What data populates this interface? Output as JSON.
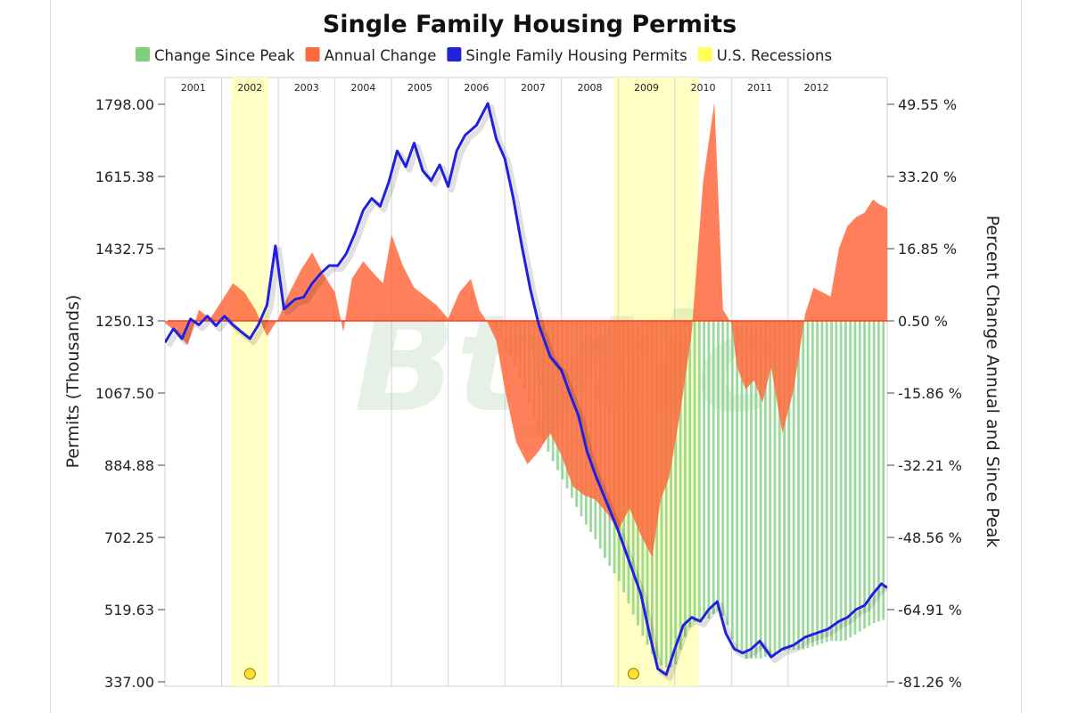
{
  "chart_data": {
    "type": "line+area+bar",
    "title": "Single Family Housing Permits",
    "ylabel_left": "Permits (Thousands)",
    "ylabel_right": "Percent Change Annual and Since Peak",
    "left_ticks": [
      "1798.00",
      "1615.38",
      "1432.75",
      "1250.13",
      "1067.50",
      "884.88",
      "702.25",
      "519.63",
      "337.00"
    ],
    "right_ticks": [
      "49.55 %",
      "33.20 %",
      "16.85 %",
      "0.50 %",
      "-15.86 %",
      "-32.21 %",
      "-48.56 %",
      "-64.91 %",
      "-81.26 %"
    ],
    "left_range": [
      337.0,
      1798.0
    ],
    "right_range": [
      -81.26,
      49.55
    ],
    "x_range": [
      2000.0,
      2012.75
    ],
    "year_labels": [
      "2001",
      "2002",
      "2003",
      "2004",
      "2005",
      "2006",
      "2007",
      "2008",
      "2009",
      "2010",
      "2011",
      "2012"
    ],
    "legend": [
      {
        "label": "Change Since Peak",
        "color": "#7fcf7f"
      },
      {
        "label": "Annual Change",
        "color": "#ff6a3d"
      },
      {
        "label": "Single Family Housing Permits",
        "color": "#2222dd"
      },
      {
        "label": "U.S. Recessions",
        "color": "#ffff55"
      }
    ],
    "recessions": [
      [
        2001.17,
        2001.83
      ],
      [
        2007.92,
        2009.42
      ]
    ],
    "grid": true,
    "permits": {
      "name": "Single Family Housing Permits",
      "x": [
        2000.0,
        2000.15,
        2000.3,
        2000.45,
        2000.6,
        2000.75,
        2000.9,
        2001.05,
        2001.2,
        2001.35,
        2001.5,
        2001.65,
        2001.8,
        2001.95,
        2002.1,
        2002.3,
        2002.45,
        2002.6,
        2002.75,
        2002.9,
        2003.05,
        2003.2,
        2003.35,
        2003.5,
        2003.65,
        2003.8,
        2003.95,
        2004.1,
        2004.25,
        2004.4,
        2004.55,
        2004.7,
        2004.85,
        2005.0,
        2005.15,
        2005.3,
        2005.5,
        2005.7,
        2005.85,
        2006.0,
        2006.15,
        2006.3,
        2006.45,
        2006.6,
        2006.8,
        2007.0,
        2007.15,
        2007.3,
        2007.45,
        2007.6,
        2007.8,
        2008.0,
        2008.2,
        2008.4,
        2008.55,
        2008.7,
        2008.85,
        2009.0,
        2009.15,
        2009.3,
        2009.45,
        2009.6,
        2009.75,
        2009.9,
        2010.05,
        2010.2,
        2010.35,
        2010.5,
        2010.7,
        2010.9,
        2011.1,
        2011.3,
        2011.5,
        2011.7,
        2011.9,
        2012.05,
        2012.2,
        2012.35,
        2012.5,
        2012.65,
        2012.75
      ],
      "y": [
        1195,
        1230,
        1205,
        1255,
        1240,
        1262,
        1238,
        1262,
        1240,
        1222,
        1205,
        1240,
        1290,
        1440,
        1280,
        1305,
        1310,
        1345,
        1370,
        1390,
        1390,
        1420,
        1470,
        1530,
        1560,
        1540,
        1600,
        1680,
        1640,
        1700,
        1630,
        1605,
        1645,
        1590,
        1680,
        1720,
        1745,
        1800,
        1710,
        1660,
        1560,
        1440,
        1330,
        1240,
        1160,
        1125,
        1065,
        1010,
        920,
        860,
        790,
        720,
        640,
        560,
        460,
        370,
        355,
        420,
        480,
        500,
        490,
        520,
        540,
        460,
        420,
        410,
        420,
        440,
        400,
        420,
        430,
        450,
        460,
        470,
        490,
        500,
        520,
        530,
        560,
        585,
        575
      ]
    },
    "annual_change": {
      "name": "Annual Change",
      "x": [
        2000.0,
        2000.2,
        2000.4,
        2000.6,
        2000.8,
        2001.0,
        2001.2,
        2001.4,
        2001.6,
        2001.8,
        2002.0,
        2002.2,
        2002.4,
        2002.6,
        2002.8,
        2003.0,
        2003.15,
        2003.3,
        2003.5,
        2003.7,
        2003.85,
        2004.0,
        2004.2,
        2004.4,
        2004.6,
        2004.8,
        2005.0,
        2005.2,
        2005.4,
        2005.55,
        2005.7,
        2005.85,
        2006.0,
        2006.2,
        2006.4,
        2006.6,
        2006.8,
        2007.0,
        2007.2,
        2007.4,
        2007.6,
        2007.8,
        2008.0,
        2008.2,
        2008.4,
        2008.6,
        2008.75,
        2008.9,
        2009.1,
        2009.3,
        2009.5,
        2009.7,
        2009.85,
        2010.0,
        2010.1,
        2010.25,
        2010.4,
        2010.55,
        2010.7,
        2010.9,
        2011.1,
        2011.3,
        2011.45,
        2011.6,
        2011.75,
        2011.9,
        2012.05,
        2012.2,
        2012.35,
        2012.5,
        2012.6,
        2012.75
      ],
      "y": [
        0,
        -2,
        -5,
        3,
        1,
        5,
        9,
        7,
        3,
        -3,
        1,
        7,
        12,
        16,
        11,
        7,
        -2,
        10,
        14,
        11,
        9,
        20,
        13,
        8,
        6,
        4,
        1,
        7,
        10,
        3,
        0,
        -4,
        -15,
        -27,
        -32,
        -29,
        -25,
        -30,
        -37,
        -39,
        -40,
        -43,
        -47,
        -42,
        -48,
        -53,
        -40,
        -35,
        -20,
        -2,
        32,
        50,
        3,
        0,
        -10,
        -15,
        -13,
        -18,
        -10,
        -25,
        -15,
        2,
        8,
        7,
        6,
        17,
        22,
        24,
        25,
        28,
        27,
        26
      ]
    },
    "since_peak": {
      "name": "Change Since Peak",
      "x": [
        2005.85,
        2006.0,
        2006.2,
        2006.4,
        2006.6,
        2006.8,
        2007.0,
        2007.2,
        2007.4,
        2007.6,
        2007.8,
        2008.0,
        2008.2,
        2008.4,
        2008.6,
        2008.8,
        2009.0,
        2009.15,
        2009.3,
        2009.45,
        2009.6,
        2009.75,
        2009.9,
        2010.05,
        2010.25,
        2010.5,
        2010.75,
        2011.0,
        2011.25,
        2011.5,
        2011.75,
        2012.0,
        2012.25,
        2012.5,
        2012.75
      ],
      "y": [
        -2,
        -5,
        -10,
        -17,
        -25,
        -30,
        -35,
        -40,
        -45,
        -49,
        -54,
        -58,
        -64,
        -70,
        -75,
        -78,
        -78,
        -72,
        -68,
        -67,
        -67,
        -65,
        -67,
        -73,
        -76,
        -76,
        -75,
        -74,
        -74,
        -73,
        -72,
        -72,
        -70,
        -68,
        -67
      ]
    }
  }
}
